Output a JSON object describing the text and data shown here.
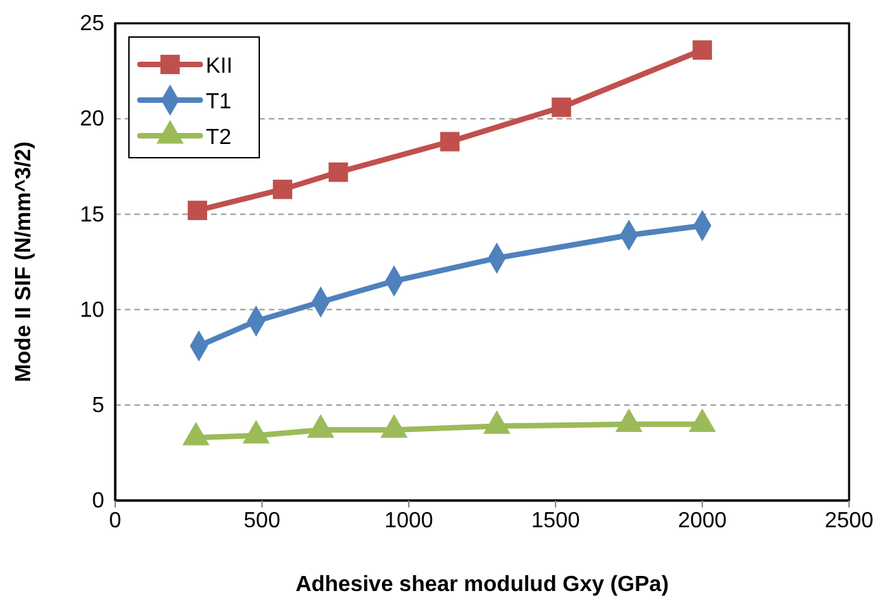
{
  "chart_data": {
    "type": "line",
    "xlabel": "Adhesive shear modulud Gxy (GPa)",
    "ylabel": "Mode II SIF (N/mm^3/2)",
    "xlim": [
      0,
      2500
    ],
    "xticks": [
      0,
      500,
      1000,
      1500,
      2000,
      2500
    ],
    "ylim": [
      0,
      25
    ],
    "yticks": [
      0,
      5,
      10,
      15,
      20,
      25
    ],
    "grid": "y",
    "legend": "top left",
    "series": [
      {
        "name": "KII",
        "color": "#c0504d",
        "marker": "square",
        "x": [
          280,
          570,
          760,
          1140,
          1520,
          2000
        ],
        "values": [
          15.2,
          16.3,
          17.2,
          18.8,
          20.6,
          23.6
        ]
      },
      {
        "name": "T1",
        "color": "#4f81bd",
        "marker": "diamond",
        "x": [
          285,
          480,
          700,
          950,
          1300,
          1750,
          2000
        ],
        "values": [
          8.1,
          9.4,
          10.4,
          11.5,
          12.7,
          13.9,
          14.4
        ]
      },
      {
        "name": "T2",
        "color": "#9bbb59",
        "marker": "triangle",
        "x": [
          275,
          480,
          700,
          950,
          1300,
          1750,
          2000
        ],
        "values": [
          3.3,
          3.4,
          3.7,
          3.7,
          3.9,
          4.0,
          4.0
        ]
      }
    ]
  }
}
